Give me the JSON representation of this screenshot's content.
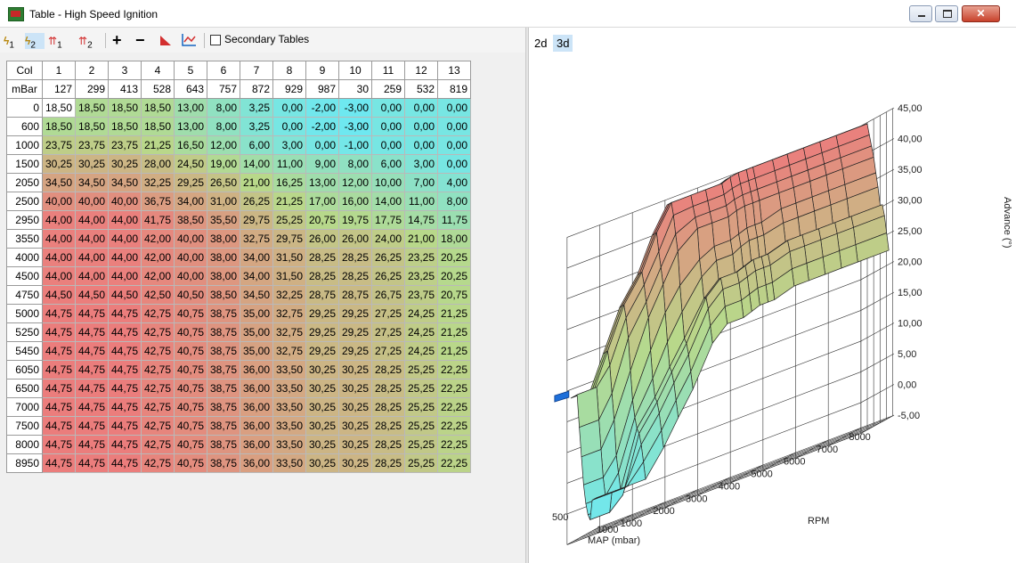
{
  "window": {
    "title": "Table - High Speed Ignition",
    "buttons": [
      "minimize",
      "maximize",
      "close"
    ]
  },
  "toolbar": {
    "items": [
      {
        "label": "1",
        "name": "ignition-map-1-button",
        "icon": "lightning-icon"
      },
      {
        "label": "2",
        "name": "ignition-map-2-button",
        "icon": "lightning-icon",
        "selected": true
      },
      {
        "label": "1",
        "name": "trim-1-button",
        "icon": "double-arrow-up-icon"
      },
      {
        "label": "2",
        "name": "trim-2-button",
        "icon": "double-arrow-up-icon"
      },
      {
        "label": "+",
        "name": "increase-button",
        "icon": "plus-icon"
      },
      {
        "label": "−",
        "name": "decrease-button",
        "icon": "minus-icon"
      },
      {
        "label": "",
        "name": "interpolate-button",
        "icon": "triangle-icon"
      },
      {
        "label": "",
        "name": "chart-button",
        "icon": "line-chart-icon"
      }
    ],
    "secondary_tables_label": "Secondary Tables",
    "secondary_tables_checked": false
  },
  "table": {
    "col_label": "Col",
    "row_unit_label": "mBar",
    "columns": [
      "1",
      "2",
      "3",
      "4",
      "5",
      "6",
      "7",
      "8",
      "9",
      "10",
      "11",
      "12",
      "13"
    ],
    "mbar": [
      "127",
      "299",
      "413",
      "528",
      "643",
      "757",
      "872",
      "929",
      "987",
      "30",
      "259",
      "532",
      "819"
    ],
    "rows": [
      {
        "label": "0",
        "values": [
          "18,50",
          "18,50",
          "18,50",
          "18,50",
          "13,00",
          "8,00",
          "3,25",
          "0,00",
          "-2,00",
          "-3,00",
          "0,00",
          "0,00",
          "0,00"
        ]
      },
      {
        "label": "600",
        "values": [
          "18,50",
          "18,50",
          "18,50",
          "18,50",
          "13,00",
          "8,00",
          "3,25",
          "0,00",
          "-2,00",
          "-3,00",
          "0,00",
          "0,00",
          "0,00"
        ]
      },
      {
        "label": "1000",
        "values": [
          "23,75",
          "23,75",
          "23,75",
          "21,25",
          "16,50",
          "12,00",
          "6,00",
          "3,00",
          "0,00",
          "-1,00",
          "0,00",
          "0,00",
          "0,00"
        ]
      },
      {
        "label": "1500",
        "values": [
          "30,25",
          "30,25",
          "30,25",
          "28,00",
          "24,50",
          "19,00",
          "14,00",
          "11,00",
          "9,00",
          "8,00",
          "6,00",
          "3,00",
          "0,00"
        ]
      },
      {
        "label": "2050",
        "values": [
          "34,50",
          "34,50",
          "34,50",
          "32,25",
          "29,25",
          "26,50",
          "21,00",
          "16,25",
          "13,00",
          "12,00",
          "10,00",
          "7,00",
          "4,00"
        ]
      },
      {
        "label": "2500",
        "values": [
          "40,00",
          "40,00",
          "40,00",
          "36,75",
          "34,00",
          "31,00",
          "26,25",
          "21,25",
          "17,00",
          "16,00",
          "14,00",
          "11,00",
          "8,00"
        ]
      },
      {
        "label": "2950",
        "values": [
          "44,00",
          "44,00",
          "44,00",
          "41,75",
          "38,50",
          "35,50",
          "29,75",
          "25,25",
          "20,75",
          "19,75",
          "17,75",
          "14,75",
          "11,75"
        ]
      },
      {
        "label": "3550",
        "values": [
          "44,00",
          "44,00",
          "44,00",
          "42,00",
          "40,00",
          "38,00",
          "32,75",
          "29,75",
          "26,00",
          "26,00",
          "24,00",
          "21,00",
          "18,00"
        ]
      },
      {
        "label": "4000",
        "values": [
          "44,00",
          "44,00",
          "44,00",
          "42,00",
          "40,00",
          "38,00",
          "34,00",
          "31,50",
          "28,25",
          "28,25",
          "26,25",
          "23,25",
          "20,25"
        ]
      },
      {
        "label": "4500",
        "values": [
          "44,00",
          "44,00",
          "44,00",
          "42,00",
          "40,00",
          "38,00",
          "34,00",
          "31,50",
          "28,25",
          "28,25",
          "26,25",
          "23,25",
          "20,25"
        ]
      },
      {
        "label": "4750",
        "values": [
          "44,50",
          "44,50",
          "44,50",
          "42,50",
          "40,50",
          "38,50",
          "34,50",
          "32,25",
          "28,75",
          "28,75",
          "26,75",
          "23,75",
          "20,75"
        ]
      },
      {
        "label": "5000",
        "values": [
          "44,75",
          "44,75",
          "44,75",
          "42,75",
          "40,75",
          "38,75",
          "35,00",
          "32,75",
          "29,25",
          "29,25",
          "27,25",
          "24,25",
          "21,25"
        ]
      },
      {
        "label": "5250",
        "values": [
          "44,75",
          "44,75",
          "44,75",
          "42,75",
          "40,75",
          "38,75",
          "35,00",
          "32,75",
          "29,25",
          "29,25",
          "27,25",
          "24,25",
          "21,25"
        ]
      },
      {
        "label": "5450",
        "values": [
          "44,75",
          "44,75",
          "44,75",
          "42,75",
          "40,75",
          "38,75",
          "35,00",
          "32,75",
          "29,25",
          "29,25",
          "27,25",
          "24,25",
          "21,25"
        ]
      },
      {
        "label": "6050",
        "values": [
          "44,75",
          "44,75",
          "44,75",
          "42,75",
          "40,75",
          "38,75",
          "36,00",
          "33,50",
          "30,25",
          "30,25",
          "28,25",
          "25,25",
          "22,25"
        ]
      },
      {
        "label": "6500",
        "values": [
          "44,75",
          "44,75",
          "44,75",
          "42,75",
          "40,75",
          "38,75",
          "36,00",
          "33,50",
          "30,25",
          "30,25",
          "28,25",
          "25,25",
          "22,25"
        ]
      },
      {
        "label": "7000",
        "values": [
          "44,75",
          "44,75",
          "44,75",
          "42,75",
          "40,75",
          "38,75",
          "36,00",
          "33,50",
          "30,25",
          "30,25",
          "28,25",
          "25,25",
          "22,25"
        ]
      },
      {
        "label": "7500",
        "values": [
          "44,75",
          "44,75",
          "44,75",
          "42,75",
          "40,75",
          "38,75",
          "36,00",
          "33,50",
          "30,25",
          "30,25",
          "28,25",
          "25,25",
          "22,25"
        ]
      },
      {
        "label": "8000",
        "values": [
          "44,75",
          "44,75",
          "44,75",
          "42,75",
          "40,75",
          "38,75",
          "36,00",
          "33,50",
          "30,25",
          "30,25",
          "28,25",
          "25,25",
          "22,25"
        ]
      },
      {
        "label": "8950",
        "values": [
          "44,75",
          "44,75",
          "44,75",
          "42,75",
          "40,75",
          "38,75",
          "36,00",
          "33,50",
          "30,25",
          "30,25",
          "28,25",
          "25,25",
          "22,25"
        ]
      }
    ],
    "selected_cell": {
      "row": 0,
      "col": 0
    }
  },
  "view_tabs": [
    {
      "label": "2d",
      "active": false
    },
    {
      "label": "3d",
      "active": true
    }
  ],
  "chart": {
    "type": "3d-surface",
    "z_axis_label": "Advance (°)",
    "z_ticks": [
      "45,00",
      "40,00",
      "35,00",
      "30,00",
      "25,00",
      "20,00",
      "15,00",
      "10,00",
      "5,00",
      "0,00",
      "-5,00"
    ],
    "rpm_axis_label": "RPM",
    "rpm_ticks": [
      "1000",
      "2000",
      "3000",
      "4000",
      "5000",
      "6000",
      "7000",
      "8000"
    ],
    "map_axis_label": "MAP (mbar)",
    "map_ticks": [
      "500",
      "1000"
    ]
  },
  "colors": {
    "low": "#6ee8f0",
    "mid": "#b8d88a",
    "high": "#ec7c7c",
    "selected_tab": "#cce4f7"
  }
}
